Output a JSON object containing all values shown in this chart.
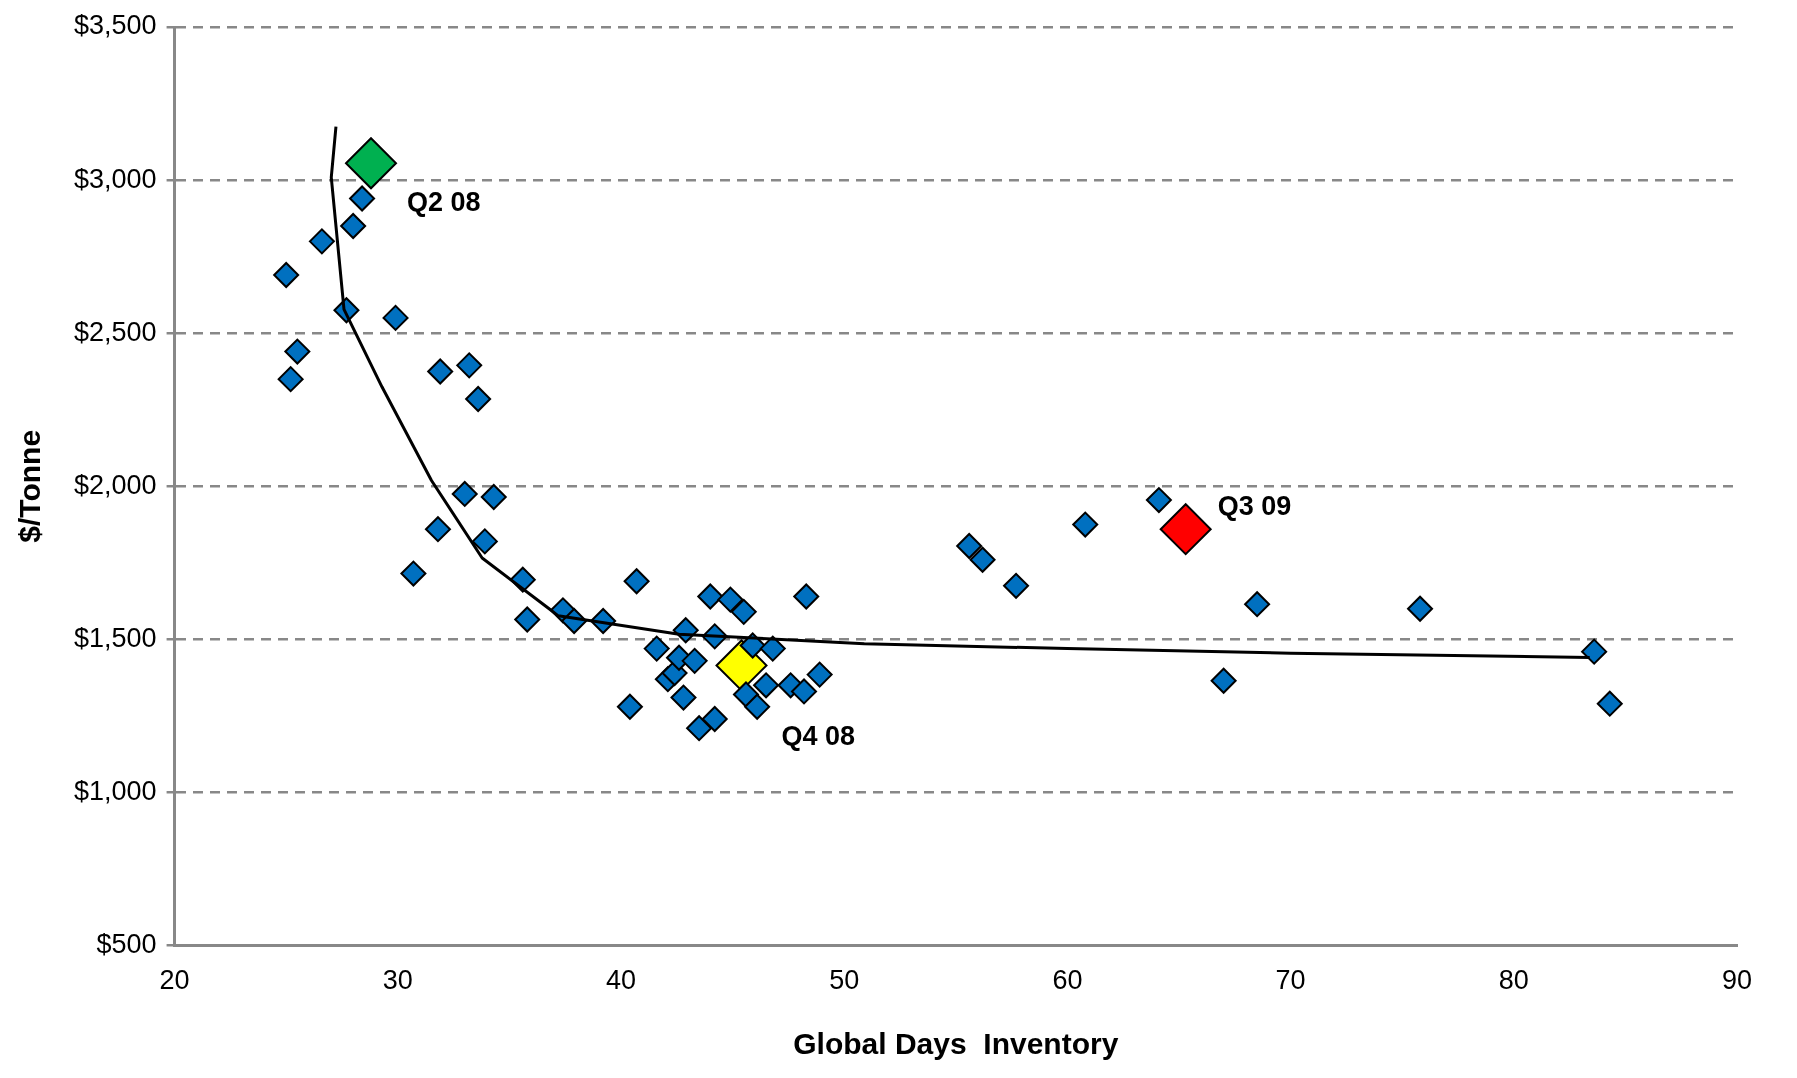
{
  "chart_data": {
    "type": "scatter",
    "xlabel": "Global Days  Inventory",
    "ylabel": "$/Tonne",
    "xlim": [
      20,
      90
    ],
    "xticks": [
      20,
      30,
      40,
      50,
      60,
      70,
      80,
      90
    ],
    "ylim": [
      500,
      3500
    ],
    "yticks": [
      {
        "value": 500,
        "label": "$500"
      },
      {
        "value": 1000,
        "label": "$1,000"
      },
      {
        "value": 1500,
        "label": "$1,500"
      },
      {
        "value": 2000,
        "label": "$2,000"
      },
      {
        "value": 2500,
        "label": "$2,500"
      },
      {
        "value": 3000,
        "label": "$3,000"
      },
      {
        "value": 3500,
        "label": "$3,500"
      }
    ],
    "grid": "y",
    "legend": false,
    "marker": "diamond",
    "series": [
      {
        "type": "line",
        "color": "#000000",
        "marker": "none",
        "x": [
          27.23,
          27.02,
          27.59,
          29.29,
          31.51,
          33.78,
          36.78,
          37.19,
          42.6,
          50.9,
          60,
          70,
          83.4
        ],
        "values": [
          3175,
          3009,
          2578,
          2325,
          2019,
          1766,
          1600,
          1577,
          1517,
          1486,
          1470,
          1455,
          1441
        ]
      },
      {
        "color": "#0070c0",
        "x": [
          25.0,
          26.6,
          28.0,
          28.4,
          27.7,
          25.5,
          25.2,
          29.9,
          31.9,
          33.2,
          33.6,
          33.0,
          34.3,
          31.8,
          33.9,
          30.7,
          35.6,
          35.8,
          37.4,
          37.9,
          39.2,
          40.7,
          40.4,
          41.6,
          42.1,
          42.4,
          42.8,
          42.6,
          42.9,
          43.3,
          43.5,
          44.0,
          44.2,
          44.2,
          44.9,
          45.5,
          45.6,
          45.9,
          46.1,
          46.5,
          46.8,
          47.6,
          48.2,
          48.3,
          48.9,
          55.6,
          56.2,
          57.7,
          60.8,
          64.1,
          67.0,
          68.5,
          75.8,
          83.6,
          84.3
        ],
        "values": [
          2690,
          2800,
          2850,
          2940,
          2575,
          2440,
          2350,
          2550,
          2375,
          2395,
          2285,
          1975,
          1965,
          1860,
          1820,
          1715,
          1695,
          1565,
          1595,
          1560,
          1560,
          1690,
          1280,
          1470,
          1370,
          1390,
          1310,
          1440,
          1530,
          1430,
          1210,
          1640,
          1240,
          1510,
          1630,
          1590,
          1320,
          1480,
          1280,
          1350,
          1470,
          1350,
          1330,
          1640,
          1385,
          1805,
          1760,
          1675,
          1875,
          1955,
          1365,
          1615,
          1600,
          1460,
          1290
        ]
      },
      {
        "color": "#00b050",
        "x": [
          28.8
        ],
        "values": [
          3055
        ]
      },
      {
        "color": "#ffff00",
        "x": [
          45.4
        ],
        "values": [
          1415
        ]
      },
      {
        "color": "#ff0000",
        "x": [
          65.3
        ],
        "values": [
          1860
        ]
      }
    ],
    "annotations": [
      {
        "text": "Q2 08",
        "x": 28.8,
        "y": 3055
      },
      {
        "text": "Q4 08",
        "x": 45.4,
        "y": 1415
      },
      {
        "text": "Q3 09",
        "x": 65.3,
        "y": 1860
      }
    ]
  }
}
